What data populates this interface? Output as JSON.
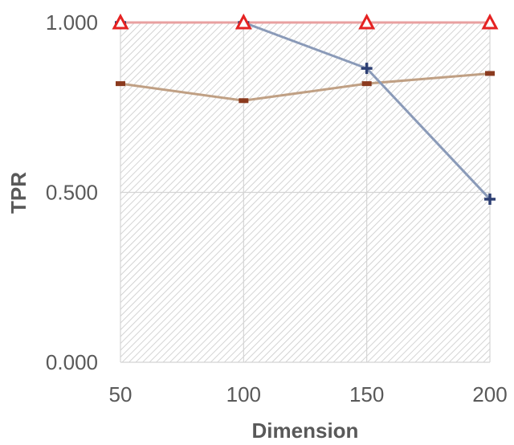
{
  "chart_data": {
    "type": "line",
    "title": "",
    "xlabel": "Dimension",
    "ylabel": "TPR",
    "categories": [
      50,
      100,
      150,
      200
    ],
    "ylim": [
      0,
      1
    ],
    "yticks": [
      "0.000",
      "0.500",
      "1.000"
    ],
    "xticks": [
      "50",
      "100",
      "150",
      "200"
    ],
    "grid": true,
    "plot_background": "diagonal-hatch",
    "series": [
      {
        "marker": "dash",
        "color": "#C0A084",
        "marker_color": "#8B3A1E",
        "values": [
          0.82,
          0.77,
          0.82,
          0.85
        ]
      },
      {
        "marker": "plus",
        "color": "#8A9AB8",
        "marker_color": "#2D3F73",
        "values": [
          1.0,
          1.0,
          0.865,
          0.48
        ]
      },
      {
        "marker": "triangle",
        "color": "#E8A0A0",
        "marker_color": "#E52222",
        "values": [
          1.0,
          1.0,
          1.0,
          1.0
        ]
      }
    ]
  }
}
